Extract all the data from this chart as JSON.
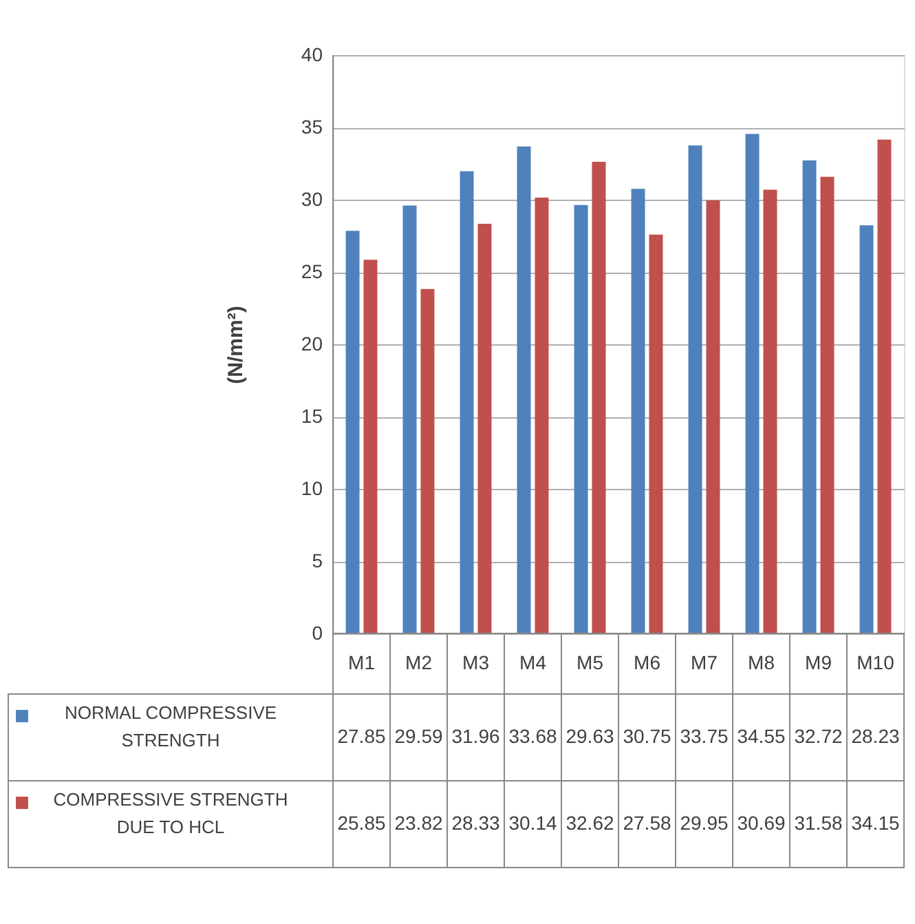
{
  "chart_data": {
    "type": "bar",
    "ylabel": "(N/mm²)",
    "categories": [
      "M1",
      "M2",
      "M3",
      "M4",
      "M5",
      "M6",
      "M7",
      "M8",
      "M9",
      "M10"
    ],
    "series": [
      {
        "name": "NORMAL COMPRESSIVE STRENGTH",
        "color": "#4f81bd",
        "values": [
          27.85,
          29.59,
          31.96,
          33.68,
          29.63,
          30.75,
          33.75,
          34.55,
          32.72,
          28.23
        ]
      },
      {
        "name": "COMPRESSIVE STRENGTH DUE TO HCL",
        "color": "#c0504d",
        "values": [
          25.85,
          23.82,
          28.33,
          30.14,
          32.62,
          27.58,
          29.95,
          30.69,
          31.58,
          34.15
        ]
      }
    ],
    "ylim": [
      0,
      40
    ],
    "yticks": [
      0,
      5,
      10,
      15,
      20,
      25,
      30,
      35,
      40
    ],
    "grid": "y",
    "legend": "bottom",
    "data_labels": true
  }
}
